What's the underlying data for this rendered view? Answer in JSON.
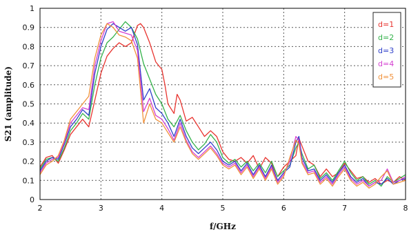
{
  "chart_data": {
    "type": "line",
    "title": "",
    "xlabel": "f/GHz",
    "ylabel": "S21 (amplitude)",
    "xlim": [
      2,
      8
    ],
    "ylim": [
      0,
      1
    ],
    "x_ticks": [
      "2",
      "3",
      "4",
      "5",
      "6",
      "7",
      "8"
    ],
    "y_ticks": [
      "0",
      "0.1",
      "0.2",
      "0.3",
      "0.4",
      "0.5",
      "0.6",
      "0.7",
      "0.8",
      "0.9",
      "1"
    ],
    "grid": true,
    "legend_position": "top-right",
    "series": [
      {
        "name": "d=1",
        "color": "#e8332e",
        "points": [
          [
            2.0,
            0.17
          ],
          [
            2.1,
            0.22
          ],
          [
            2.2,
            0.23
          ],
          [
            2.3,
            0.19
          ],
          [
            2.4,
            0.26
          ],
          [
            2.5,
            0.34
          ],
          [
            2.6,
            0.38
          ],
          [
            2.7,
            0.42
          ],
          [
            2.8,
            0.38
          ],
          [
            2.9,
            0.52
          ],
          [
            3.0,
            0.66
          ],
          [
            3.1,
            0.75
          ],
          [
            3.2,
            0.79
          ],
          [
            3.3,
            0.82
          ],
          [
            3.4,
            0.8
          ],
          [
            3.5,
            0.82
          ],
          [
            3.6,
            0.91
          ],
          [
            3.65,
            0.92
          ],
          [
            3.7,
            0.9
          ],
          [
            3.8,
            0.82
          ],
          [
            3.9,
            0.72
          ],
          [
            4.0,
            0.68
          ],
          [
            4.05,
            0.6
          ],
          [
            4.1,
            0.5
          ],
          [
            4.2,
            0.45
          ],
          [
            4.25,
            0.55
          ],
          [
            4.3,
            0.52
          ],
          [
            4.4,
            0.41
          ],
          [
            4.5,
            0.43
          ],
          [
            4.6,
            0.38
          ],
          [
            4.7,
            0.33
          ],
          [
            4.8,
            0.36
          ],
          [
            4.9,
            0.33
          ],
          [
            5.0,
            0.25
          ],
          [
            5.1,
            0.21
          ],
          [
            5.2,
            0.2
          ],
          [
            5.3,
            0.22
          ],
          [
            5.4,
            0.19
          ],
          [
            5.5,
            0.23
          ],
          [
            5.6,
            0.16
          ],
          [
            5.7,
            0.22
          ],
          [
            5.8,
            0.19
          ],
          [
            5.9,
            0.12
          ],
          [
            6.0,
            0.17
          ],
          [
            6.1,
            0.2
          ],
          [
            6.2,
            0.23
          ],
          [
            6.25,
            0.32
          ],
          [
            6.3,
            0.28
          ],
          [
            6.4,
            0.2
          ],
          [
            6.5,
            0.18
          ],
          [
            6.6,
            0.12
          ],
          [
            6.7,
            0.16
          ],
          [
            6.8,
            0.12
          ],
          [
            6.9,
            0.14
          ],
          [
            7.0,
            0.19
          ],
          [
            7.1,
            0.15
          ],
          [
            7.2,
            0.11
          ],
          [
            7.3,
            0.12
          ],
          [
            7.4,
            0.09
          ],
          [
            7.5,
            0.11
          ],
          [
            7.6,
            0.08
          ],
          [
            7.7,
            0.1
          ],
          [
            7.8,
            0.09
          ],
          [
            7.9,
            0.12
          ],
          [
            8.0,
            0.1
          ]
        ]
      },
      {
        "name": "d=2",
        "color": "#33b24a",
        "points": [
          [
            2.0,
            0.16
          ],
          [
            2.1,
            0.21
          ],
          [
            2.2,
            0.22
          ],
          [
            2.3,
            0.2
          ],
          [
            2.4,
            0.27
          ],
          [
            2.5,
            0.36
          ],
          [
            2.6,
            0.4
          ],
          [
            2.7,
            0.45
          ],
          [
            2.8,
            0.42
          ],
          [
            2.9,
            0.6
          ],
          [
            3.0,
            0.74
          ],
          [
            3.1,
            0.82
          ],
          [
            3.2,
            0.85
          ],
          [
            3.3,
            0.89
          ],
          [
            3.4,
            0.93
          ],
          [
            3.5,
            0.9
          ],
          [
            3.6,
            0.84
          ],
          [
            3.7,
            0.71
          ],
          [
            3.8,
            0.63
          ],
          [
            3.9,
            0.55
          ],
          [
            4.0,
            0.5
          ],
          [
            4.1,
            0.42
          ],
          [
            4.2,
            0.38
          ],
          [
            4.3,
            0.44
          ],
          [
            4.4,
            0.36
          ],
          [
            4.5,
            0.3
          ],
          [
            4.6,
            0.26
          ],
          [
            4.7,
            0.29
          ],
          [
            4.8,
            0.34
          ],
          [
            4.9,
            0.3
          ],
          [
            5.0,
            0.22
          ],
          [
            5.1,
            0.19
          ],
          [
            5.2,
            0.21
          ],
          [
            5.3,
            0.17
          ],
          [
            5.4,
            0.2
          ],
          [
            5.5,
            0.15
          ],
          [
            5.6,
            0.19
          ],
          [
            5.7,
            0.14
          ],
          [
            5.8,
            0.2
          ],
          [
            5.9,
            0.12
          ],
          [
            6.0,
            0.15
          ],
          [
            6.1,
            0.18
          ],
          [
            6.2,
            0.27
          ],
          [
            6.25,
            0.3
          ],
          [
            6.3,
            0.24
          ],
          [
            6.4,
            0.16
          ],
          [
            6.5,
            0.18
          ],
          [
            6.6,
            0.11
          ],
          [
            6.7,
            0.14
          ],
          [
            6.8,
            0.1
          ],
          [
            6.9,
            0.15
          ],
          [
            7.0,
            0.2
          ],
          [
            7.1,
            0.14
          ],
          [
            7.2,
            0.1
          ],
          [
            7.3,
            0.12
          ],
          [
            7.4,
            0.08
          ],
          [
            7.5,
            0.1
          ],
          [
            7.6,
            0.07
          ],
          [
            7.7,
            0.12
          ],
          [
            7.8,
            0.09
          ],
          [
            7.9,
            0.11
          ],
          [
            8.0,
            0.13
          ]
        ]
      },
      {
        "name": "d=3",
        "color": "#2e3fc9",
        "points": [
          [
            2.0,
            0.15
          ],
          [
            2.1,
            0.2
          ],
          [
            2.2,
            0.22
          ],
          [
            2.3,
            0.21
          ],
          [
            2.4,
            0.29
          ],
          [
            2.5,
            0.38
          ],
          [
            2.6,
            0.42
          ],
          [
            2.7,
            0.47
          ],
          [
            2.8,
            0.44
          ],
          [
            2.9,
            0.66
          ],
          [
            3.0,
            0.8
          ],
          [
            3.1,
            0.89
          ],
          [
            3.2,
            0.92
          ],
          [
            3.3,
            0.9
          ],
          [
            3.4,
            0.88
          ],
          [
            3.5,
            0.9
          ],
          [
            3.6,
            0.81
          ],
          [
            3.7,
            0.52
          ],
          [
            3.8,
            0.58
          ],
          [
            3.9,
            0.48
          ],
          [
            4.0,
            0.45
          ],
          [
            4.1,
            0.4
          ],
          [
            4.2,
            0.33
          ],
          [
            4.3,
            0.42
          ],
          [
            4.4,
            0.33
          ],
          [
            4.5,
            0.27
          ],
          [
            4.6,
            0.24
          ],
          [
            4.7,
            0.27
          ],
          [
            4.8,
            0.3
          ],
          [
            4.9,
            0.26
          ],
          [
            5.0,
            0.2
          ],
          [
            5.1,
            0.18
          ],
          [
            5.2,
            0.2
          ],
          [
            5.3,
            0.15
          ],
          [
            5.4,
            0.19
          ],
          [
            5.5,
            0.13
          ],
          [
            5.6,
            0.18
          ],
          [
            5.7,
            0.12
          ],
          [
            5.8,
            0.18
          ],
          [
            5.9,
            0.1
          ],
          [
            6.0,
            0.14
          ],
          [
            6.1,
            0.17
          ],
          [
            6.2,
            0.3
          ],
          [
            6.25,
            0.33
          ],
          [
            6.3,
            0.22
          ],
          [
            6.4,
            0.15
          ],
          [
            6.5,
            0.16
          ],
          [
            6.6,
            0.1
          ],
          [
            6.7,
            0.13
          ],
          [
            6.8,
            0.09
          ],
          [
            6.9,
            0.14
          ],
          [
            7.0,
            0.18
          ],
          [
            7.1,
            0.12
          ],
          [
            7.2,
            0.09
          ],
          [
            7.3,
            0.11
          ],
          [
            7.4,
            0.07
          ],
          [
            7.5,
            0.09
          ],
          [
            7.6,
            0.08
          ],
          [
            7.7,
            0.11
          ],
          [
            7.8,
            0.08
          ],
          [
            7.9,
            0.1
          ],
          [
            8.0,
            0.11
          ]
        ]
      },
      {
        "name": "d=4",
        "color": "#d43fd0",
        "points": [
          [
            2.0,
            0.14
          ],
          [
            2.1,
            0.19
          ],
          [
            2.2,
            0.21
          ],
          [
            2.3,
            0.22
          ],
          [
            2.4,
            0.3
          ],
          [
            2.5,
            0.4
          ],
          [
            2.6,
            0.44
          ],
          [
            2.7,
            0.48
          ],
          [
            2.8,
            0.47
          ],
          [
            2.9,
            0.7
          ],
          [
            3.0,
            0.83
          ],
          [
            3.1,
            0.92
          ],
          [
            3.2,
            0.93
          ],
          [
            3.3,
            0.88
          ],
          [
            3.4,
            0.87
          ],
          [
            3.5,
            0.86
          ],
          [
            3.6,
            0.78
          ],
          [
            3.7,
            0.46
          ],
          [
            3.8,
            0.53
          ],
          [
            3.9,
            0.44
          ],
          [
            4.0,
            0.42
          ],
          [
            4.1,
            0.37
          ],
          [
            4.2,
            0.31
          ],
          [
            4.3,
            0.4
          ],
          [
            4.4,
            0.31
          ],
          [
            4.5,
            0.25
          ],
          [
            4.6,
            0.22
          ],
          [
            4.7,
            0.25
          ],
          [
            4.8,
            0.28
          ],
          [
            4.9,
            0.24
          ],
          [
            5.0,
            0.19
          ],
          [
            5.1,
            0.17
          ],
          [
            5.2,
            0.19
          ],
          [
            5.3,
            0.14
          ],
          [
            5.4,
            0.18
          ],
          [
            5.5,
            0.12
          ],
          [
            5.6,
            0.17
          ],
          [
            5.7,
            0.11
          ],
          [
            5.8,
            0.17
          ],
          [
            5.9,
            0.09
          ],
          [
            6.0,
            0.13
          ],
          [
            6.1,
            0.2
          ],
          [
            6.2,
            0.33
          ],
          [
            6.25,
            0.31
          ],
          [
            6.3,
            0.2
          ],
          [
            6.4,
            0.14
          ],
          [
            6.5,
            0.15
          ],
          [
            6.6,
            0.09
          ],
          [
            6.7,
            0.12
          ],
          [
            6.8,
            0.08
          ],
          [
            6.9,
            0.13
          ],
          [
            7.0,
            0.17
          ],
          [
            7.1,
            0.11
          ],
          [
            7.2,
            0.08
          ],
          [
            7.3,
            0.1
          ],
          [
            7.4,
            0.07
          ],
          [
            7.5,
            0.09
          ],
          [
            7.6,
            0.1
          ],
          [
            7.7,
            0.16
          ],
          [
            7.8,
            0.09
          ],
          [
            7.9,
            0.1
          ],
          [
            8.0,
            0.12
          ]
        ]
      },
      {
        "name": "d=5",
        "color": "#f0913a",
        "points": [
          [
            2.0,
            0.13
          ],
          [
            2.1,
            0.18
          ],
          [
            2.2,
            0.2
          ],
          [
            2.3,
            0.23
          ],
          [
            2.4,
            0.31
          ],
          [
            2.5,
            0.42
          ],
          [
            2.6,
            0.46
          ],
          [
            2.7,
            0.5
          ],
          [
            2.8,
            0.54
          ],
          [
            2.9,
            0.74
          ],
          [
            3.0,
            0.86
          ],
          [
            3.1,
            0.92
          ],
          [
            3.2,
            0.9
          ],
          [
            3.3,
            0.86
          ],
          [
            3.4,
            0.85
          ],
          [
            3.5,
            0.83
          ],
          [
            3.6,
            0.74
          ],
          [
            3.7,
            0.4
          ],
          [
            3.8,
            0.5
          ],
          [
            3.9,
            0.42
          ],
          [
            4.0,
            0.4
          ],
          [
            4.1,
            0.35
          ],
          [
            4.2,
            0.3
          ],
          [
            4.3,
            0.38
          ],
          [
            4.4,
            0.3
          ],
          [
            4.5,
            0.24
          ],
          [
            4.6,
            0.21
          ],
          [
            4.7,
            0.24
          ],
          [
            4.8,
            0.27
          ],
          [
            4.9,
            0.23
          ],
          [
            5.0,
            0.18
          ],
          [
            5.1,
            0.16
          ],
          [
            5.2,
            0.18
          ],
          [
            5.3,
            0.13
          ],
          [
            5.4,
            0.17
          ],
          [
            5.5,
            0.11
          ],
          [
            5.6,
            0.16
          ],
          [
            5.7,
            0.1
          ],
          [
            5.8,
            0.16
          ],
          [
            5.9,
            0.08
          ],
          [
            6.0,
            0.12
          ],
          [
            6.1,
            0.22
          ],
          [
            6.2,
            0.31
          ],
          [
            6.25,
            0.29
          ],
          [
            6.3,
            0.19
          ],
          [
            6.4,
            0.13
          ],
          [
            6.5,
            0.14
          ],
          [
            6.6,
            0.08
          ],
          [
            6.7,
            0.11
          ],
          [
            6.8,
            0.07
          ],
          [
            6.9,
            0.12
          ],
          [
            7.0,
            0.16
          ],
          [
            7.1,
            0.1
          ],
          [
            7.2,
            0.07
          ],
          [
            7.3,
            0.09
          ],
          [
            7.4,
            0.06
          ],
          [
            7.5,
            0.08
          ],
          [
            7.6,
            0.12
          ],
          [
            7.7,
            0.15
          ],
          [
            7.8,
            0.08
          ],
          [
            7.9,
            0.09
          ],
          [
            8.0,
            0.1
          ]
        ]
      }
    ]
  }
}
